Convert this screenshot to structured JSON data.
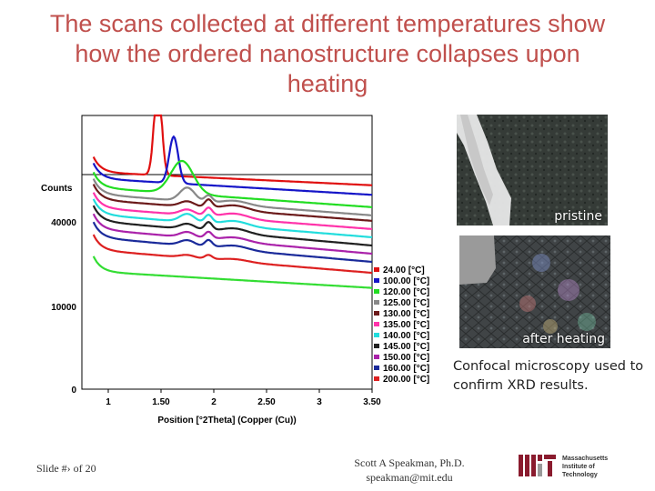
{
  "slide": {
    "title_lines": [
      "The scans collected at different temperatures show",
      "how the ordered nanostructure collapses upon",
      "heating"
    ],
    "caption": "Confocal microscopy used to confirm XRD results.",
    "slide_number": "Slide #› of 20",
    "author": "Scott A Speakman, Ph.D.",
    "email": "speakman@mit.edu",
    "logo_text": [
      "Massachusetts",
      "Institute of",
      "Technology"
    ],
    "image_labels": {
      "top": "pristine",
      "bottom": "after heating"
    }
  },
  "chart_data": {
    "type": "line",
    "xlabel": "Position [°2Theta] (Copper (Cu))",
    "ylabel": "Counts",
    "x_ticks": [
      1,
      1.5,
      2,
      2.5,
      3,
      3.5
    ],
    "x_tick_labels": [
      "1",
      "1.50",
      "2",
      "2.50",
      "3",
      "3.50"
    ],
    "y_tick_labels": [
      "40000",
      "10000",
      "0"
    ],
    "xlim": [
      0.75,
      3.5
    ],
    "legend_position": "right",
    "series": [
      {
        "name": "24.00 [°C]",
        "color": "#e01010",
        "base": 0.745,
        "peak": 0.345,
        "peak_x": 1.47,
        "peak_w": 0.05,
        "shoulder": 0.0,
        "tail": 0.08
      },
      {
        "name": "100.00 [°C]",
        "color": "#1515c8",
        "base": 0.71,
        "peak": 0.17,
        "peak_x": 1.62,
        "peak_w": 0.06,
        "shoulder": 0.0,
        "tail": 0.1
      },
      {
        "name": "120.00 [°C]",
        "color": "#22dd22",
        "base": 0.665,
        "peak": 0.12,
        "peak_x": 1.7,
        "peak_w": 0.15,
        "shoulder": 0.0,
        "tail": 0.12
      },
      {
        "name": "125.00 [°C]",
        "color": "#888888",
        "base": 0.635,
        "peak": 0.05,
        "peak_x": 1.75,
        "peak_w": 0.1,
        "shoulder": 0.025,
        "tail": 0.13
      },
      {
        "name": "130.00 [°C]",
        "color": "#6b1a1a",
        "base": 0.615,
        "peak": 0.02,
        "peak_x": 1.75,
        "peak_w": 0.1,
        "shoulder": 0.03,
        "tail": 0.13
      },
      {
        "name": "135.00 [°C]",
        "color": "#ff33aa",
        "base": 0.585,
        "peak": 0.02,
        "peak_x": 1.75,
        "peak_w": 0.1,
        "shoulder": 0.03,
        "tail": 0.13
      },
      {
        "name": "140.00 [°C]",
        "color": "#22dddd",
        "base": 0.555,
        "peak": 0.03,
        "peak_x": 1.75,
        "peak_w": 0.1,
        "shoulder": 0.03,
        "tail": 0.14
      },
      {
        "name": "145.00 [°C]",
        "color": "#202020",
        "base": 0.525,
        "peak": 0.02,
        "peak_x": 1.75,
        "peak_w": 0.1,
        "shoulder": 0.03,
        "tail": 0.15
      },
      {
        "name": "150.00 [°C]",
        "color": "#aa22aa",
        "base": 0.495,
        "peak": 0.02,
        "peak_x": 1.75,
        "peak_w": 0.1,
        "shoulder": 0.025,
        "tail": 0.15
      },
      {
        "name": "160.00 [°C]",
        "color": "#1a2a9a",
        "base": 0.465,
        "peak": 0.02,
        "peak_x": 1.75,
        "peak_w": 0.1,
        "shoulder": 0.025,
        "tail": 0.15
      },
      {
        "name": "200.00 [°C]",
        "color": "#dd2020",
        "base": 0.425,
        "peak": 0.01,
        "peak_x": 1.75,
        "peak_w": 0.1,
        "shoulder": 0.015,
        "tail": 0.14
      },
      {
        "name": "",
        "color": "#33dd33",
        "base": 0.37,
        "peak": 0.0,
        "peak_x": 1.75,
        "peak_w": 0.1,
        "shoulder": 0.0,
        "tail": 0.1
      }
    ]
  }
}
